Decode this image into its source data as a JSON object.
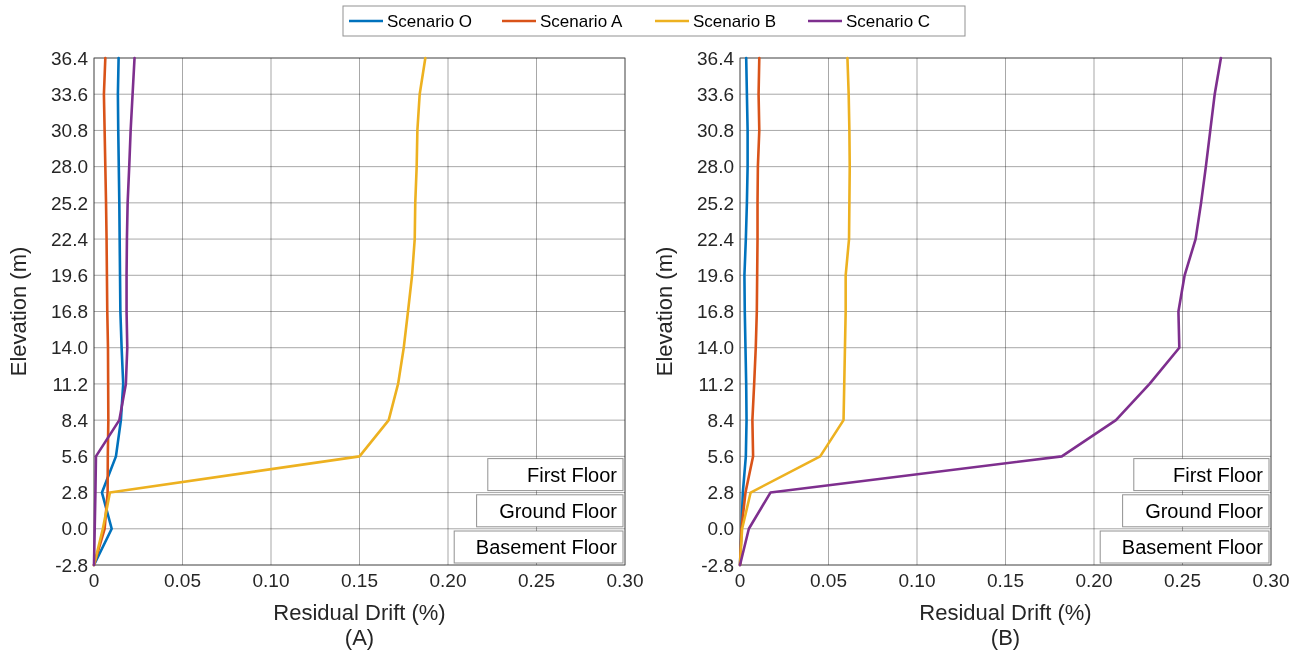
{
  "chart_data": [
    {
      "type": "line",
      "title": "(A)",
      "xlabel": "Residual Drift (%)",
      "ylabel": "Elevation (m)",
      "orientation": "horizontal",
      "legend": "top",
      "grid": true,
      "x": [
        -2.8,
        0,
        2.8,
        5.6,
        8.4,
        11.2,
        14,
        16.8,
        19.6,
        22.4,
        25.2,
        28,
        30.8,
        33.6,
        36.4
      ],
      "series": [
        {
          "name": "Scenario O",
          "color": "#0072bd",
          "values": [
            0,
            0.01,
            0.0045,
            0.0124,
            0.0152,
            0.0165,
            0.0156,
            0.0149,
            0.0147,
            0.0145,
            0.0143,
            0.014,
            0.0137,
            0.0135,
            0.0139
          ]
        },
        {
          "name": "Scenario A",
          "color": "#d95319",
          "values": [
            0,
            0.006,
            0.0077,
            0.0078,
            0.0081,
            0.008,
            0.0079,
            0.0075,
            0.0073,
            0.0071,
            0.0068,
            0.0064,
            0.006,
            0.0056,
            0.0064
          ]
        },
        {
          "name": "Scenario B",
          "color": "#edb120",
          "values": [
            0,
            0.005,
            0.009,
            0.15,
            0.1665,
            0.1718,
            0.175,
            0.1774,
            0.1797,
            0.1812,
            0.1815,
            0.1823,
            0.1827,
            0.184,
            0.1872
          ]
        },
        {
          "name": "Scenario C",
          "color": "#7e2f8e",
          "values": [
            0,
            0.0004,
            0.0008,
            0.0011,
            0.0143,
            0.018,
            0.0188,
            0.0184,
            0.0184,
            0.0186,
            0.019,
            0.0199,
            0.0207,
            0.0218,
            0.0229
          ]
        }
      ],
      "xlim": [
        0,
        0.3
      ],
      "xticks": [
        0,
        {
          "value": 0.05,
          "label": "0.05"
        },
        {
          "value": 0.1,
          "label": "0.10"
        },
        {
          "value": 0.15,
          "label": "0.15"
        },
        {
          "value": 0.2,
          "label": "0.20"
        },
        {
          "value": 0.25,
          "label": "0.25"
        },
        {
          "value": 0.3,
          "label": "0.30"
        }
      ],
      "ylim": [
        -2.8,
        36.4
      ],
      "yticks": [
        -2.8,
        {
          "value": 0,
          "label": "0.0"
        },
        2.8,
        5.6,
        8.4,
        11.2,
        {
          "value": 14,
          "label": "14.0"
        },
        16.8,
        19.6,
        22.4,
        25.2,
        {
          "value": 28,
          "label": "28.0"
        },
        30.8,
        33.6,
        36.4
      ],
      "annotations": [
        "First Floor",
        "Ground Floor",
        "Basement Floor"
      ]
    },
    {
      "type": "line",
      "title": "(B)",
      "xlabel": "Residual Drift (%)",
      "ylabel": "Elevation (m)",
      "orientation": "horizontal",
      "legend": "top",
      "grid": true,
      "x": [
        -2.8,
        0,
        2.8,
        5.6,
        8.4,
        11.2,
        14,
        16.8,
        19.6,
        22.4,
        25.2,
        28,
        30.8,
        33.6,
        36.4
      ],
      "series": [
        {
          "name": "Scenario O",
          "color": "#0072bd",
          "values": [
            0,
            0.0008,
            0.0016,
            0.0033,
            0.0037,
            0.0035,
            0.0031,
            0.0027,
            0.0025,
            0.0033,
            0.0039,
            0.0043,
            0.0043,
            0.0039,
            0.0035
          ]
        },
        {
          "name": "Scenario A",
          "color": "#d95319",
          "values": [
            0,
            0.0008,
            0.0031,
            0.0074,
            0.007,
            0.008,
            0.0089,
            0.0095,
            0.0097,
            0.0099,
            0.0099,
            0.0101,
            0.0109,
            0.0105,
            0.0109
          ]
        },
        {
          "name": "Scenario B",
          "color": "#edb120",
          "values": [
            0,
            0.0012,
            0.006,
            0.0453,
            0.0585,
            0.0589,
            0.0593,
            0.0597,
            0.0597,
            0.0616,
            0.0618,
            0.062,
            0.0618,
            0.0614,
            0.0607
          ]
        },
        {
          "name": "Scenario C",
          "color": "#7e2f8e",
          "values": [
            0,
            0.005,
            0.0172,
            0.1818,
            0.2124,
            0.2314,
            0.2482,
            0.2477,
            0.2512,
            0.2574,
            0.2605,
            0.2632,
            0.2657,
            0.2682,
            0.2717
          ]
        }
      ],
      "xlim": [
        0,
        0.3
      ],
      "xticks": [
        0,
        {
          "value": 0.05,
          "label": "0.05"
        },
        {
          "value": 0.1,
          "label": "0.10"
        },
        {
          "value": 0.15,
          "label": "0.15"
        },
        {
          "value": 0.2,
          "label": "0.20"
        },
        {
          "value": 0.25,
          "label": "0.25"
        },
        {
          "value": 0.3,
          "label": "0.30"
        }
      ],
      "ylim": [
        -2.8,
        36.4
      ],
      "yticks": [
        -2.8,
        {
          "value": 0,
          "label": "0.0"
        },
        2.8,
        5.6,
        8.4,
        11.2,
        {
          "value": 14,
          "label": "14.0"
        },
        16.8,
        19.6,
        22.4,
        25.2,
        {
          "value": 28,
          "label": "28.0"
        },
        30.8,
        33.6,
        36.4
      ],
      "annotations": [
        "First Floor",
        "Ground Floor",
        "Basement Floor"
      ]
    }
  ]
}
